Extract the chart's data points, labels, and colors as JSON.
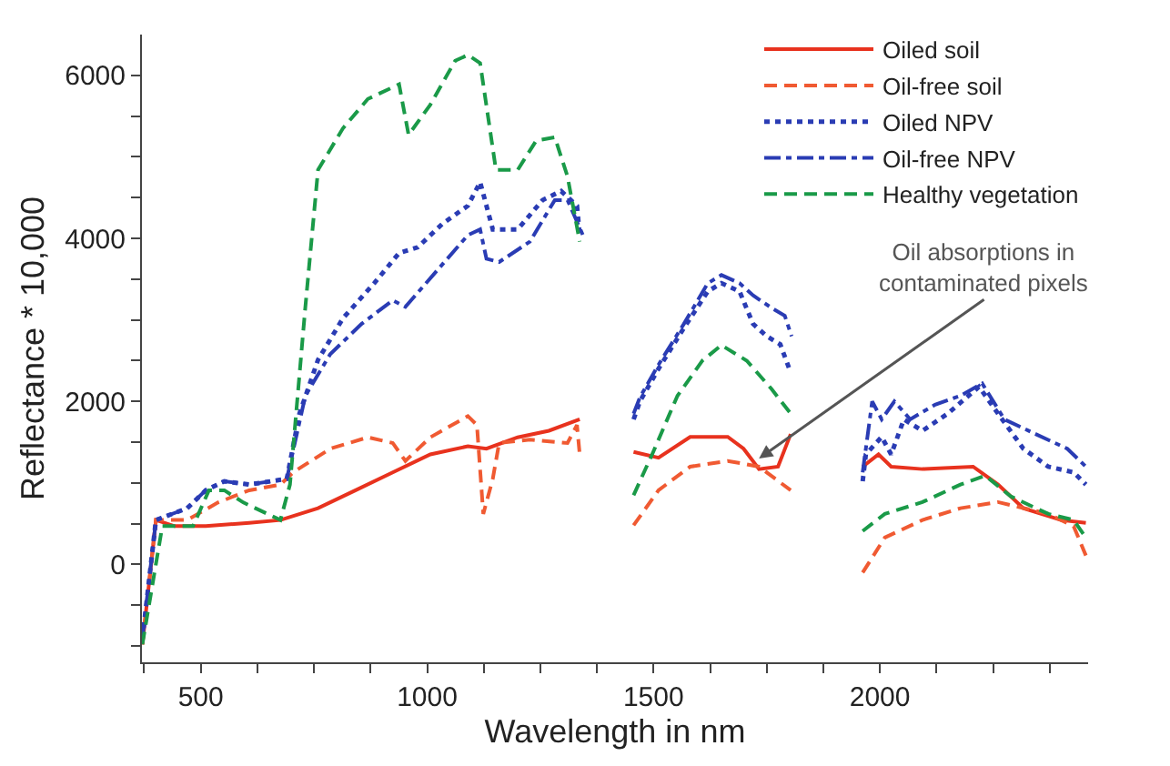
{
  "chart_data": {
    "type": "line",
    "xlabel": "Wavelength in nm",
    "ylabel": "Reflectance * 10,000",
    "xlim": [
      370,
      2460
    ],
    "ylim": [
      -1200,
      6500
    ],
    "xticks": [
      {
        "value": 375,
        "label": null
      },
      500,
      {
        "value": 625,
        "label": null
      },
      {
        "value": 750,
        "label": null
      },
      {
        "value": 875,
        "label": null
      },
      1000,
      {
        "value": 1125,
        "label": null
      },
      {
        "value": 1250,
        "label": null
      },
      {
        "value": 1375,
        "label": null
      },
      1500,
      {
        "value": 1625,
        "label": null
      },
      {
        "value": 1750,
        "label": null
      },
      {
        "value": 1875,
        "label": null
      },
      2000,
      {
        "value": 2125,
        "label": null
      },
      {
        "value": 2250,
        "label": null
      },
      {
        "value": 2375,
        "label": null
      }
    ],
    "yticks": [
      {
        "value": -1000,
        "label": null
      },
      {
        "value": -500,
        "label": null
      },
      0,
      {
        "value": 500,
        "label": null
      },
      {
        "value": 1000,
        "label": null
      },
      {
        "value": 1500,
        "label": null
      },
      2000,
      {
        "value": 2500,
        "label": null
      },
      {
        "value": 3000,
        "label": null
      },
      {
        "value": 3500,
        "label": null
      },
      4000,
      {
        "value": 4500,
        "label": null
      },
      {
        "value": 5000,
        "label": null
      },
      {
        "value": 5500,
        "label": null
      },
      6000
    ],
    "grid": false,
    "legend": "top right",
    "marker": "none",
    "annotations": [
      {
        "text": "Oil absorptions in contaminated pixels",
        "x": 1733,
        "y": 1300
      }
    ],
    "series": [
      {
        "name": "Oiled soil",
        "color": "#e8321e",
        "line_style": "solid",
        "x": [
          371,
          401,
          442,
          511,
          607,
          676,
          759,
          842,
          924,
          1007,
          1090,
          1131,
          1200,
          1269,
          1337,
          1400,
          1456,
          1511,
          1581,
          1664,
          1699,
          1733,
          1775,
          1803,
          1900,
          1962,
          1997,
          2025,
          2094,
          2206,
          2261,
          2317,
          2400,
          2455
        ],
        "values": [
          -980,
          545,
          470,
          470,
          510,
          545,
          690,
          910,
          1130,
          1350,
          1450,
          1420,
          1560,
          1640,
          1780,
          null,
          1380,
          1310,
          1565,
          1565,
          1420,
          1170,
          1200,
          1600,
          null,
          1200,
          1350,
          1200,
          1170,
          1200,
          980,
          690,
          545,
          510
        ]
      },
      {
        "name": "Oil-free soil",
        "color": "#f05a32",
        "line_style": "dashed",
        "x": [
          371,
          401,
          470,
          538,
          607,
          676,
          704,
          786,
          869,
          924,
          952,
          1007,
          1090,
          1110,
          1124,
          1145,
          1159,
          1227,
          1310,
          1331,
          1337,
          1400,
          1456,
          1511,
          1581,
          1664,
          1733,
          1803,
          1900,
          1962,
          2011,
          2094,
          2178,
          2261,
          2372,
          2428,
          2455
        ],
        "values": [
          -980,
          545,
          545,
          760,
          910,
          980,
          1130,
          1420,
          1560,
          1490,
          1270,
          1560,
          1820,
          1710,
          620,
          1050,
          1490,
          1530,
          1490,
          1710,
          1350,
          null,
          480,
          910,
          1200,
          1270,
          1200,
          910,
          null,
          -100,
          330,
          545,
          690,
          765,
          620,
          470,
          110
        ]
      },
      {
        "name": "Oiled NPV",
        "color": "#2a3cb4",
        "line_style": "dotted",
        "x": [
          371,
          401,
          470,
          511,
          552,
          607,
          690,
          718,
          759,
          814,
          883,
          938,
          979,
          1034,
          1090,
          1117,
          1145,
          1200,
          1255,
          1296,
          1331,
          1337,
          1400,
          1456,
          1470,
          1511,
          1567,
          1620,
          1650,
          1690,
          1720,
          1750,
          1780,
          1800,
          1900,
          1962,
          1969,
          2004,
          2025,
          2053,
          2094,
          2150,
          2219,
          2261,
          2317,
          2372,
          2428,
          2455
        ],
        "values": [
          -910,
          545,
          690,
          910,
          1020,
          980,
          1050,
          1850,
          2510,
          3020,
          3450,
          3820,
          3890,
          4180,
          4400,
          4690,
          4110,
          4110,
          4470,
          4580,
          4400,
          4040,
          null,
          1780,
          2000,
          2400,
          2900,
          3350,
          3450,
          3350,
          2950,
          2800,
          2700,
          2400,
          null,
          1020,
          1350,
          1565,
          1350,
          1780,
          1640,
          1850,
          2180,
          1850,
          1420,
          1200,
          1130,
          980
        ]
      },
      {
        "name": "Oil-free NPV",
        "color": "#2a3cb4",
        "line_style": "dashdot",
        "x": [
          371,
          401,
          470,
          511,
          552,
          607,
          690,
          731,
          786,
          855,
          924,
          952,
          1021,
          1090,
          1117,
          1131,
          1159,
          1227,
          1282,
          1310,
          1344,
          1400,
          1456,
          1470,
          1511,
          1567,
          1620,
          1650,
          1690,
          1720,
          1760,
          1790,
          1805,
          1900,
          1962,
          1983,
          2004,
          2032,
          2067,
          2122,
          2178,
          2226,
          2275,
          2344,
          2414,
          2455
        ],
        "values": [
          -910,
          545,
          690,
          910,
          1020,
          980,
          1050,
          2070,
          2580,
          2950,
          3240,
          3160,
          3600,
          4040,
          4110,
          3750,
          3710,
          3960,
          4470,
          4470,
          4040,
          null,
          1850,
          2050,
          2450,
          2950,
          3450,
          3550,
          3450,
          3300,
          3150,
          3050,
          2800,
          null,
          1130,
          2000,
          1780,
          2000,
          1780,
          1960,
          2070,
          2220,
          1780,
          1600,
          1420,
          1200
        ]
      },
      {
        "name": "Healthy vegetation",
        "color": "#1a9a48",
        "line_style": "dashed",
        "x": [
          371,
          415,
          483,
          518,
          552,
          594,
          676,
          697,
          731,
          759,
          814,
          869,
          938,
          959,
          1007,
          1062,
          1090,
          1117,
          1152,
          1200,
          1241,
          1282,
          1310,
          1337,
          1400,
          1456,
          1497,
          1553,
          1608,
          1650,
          1706,
          1761,
          1803,
          1900,
          1962,
          2011,
          2094,
          2178,
          2233,
          2289,
          2372,
          2428,
          2455
        ],
        "values": [
          -980,
          470,
          470,
          910,
          910,
          760,
          545,
          980,
          3160,
          4840,
          5350,
          5710,
          5890,
          5270,
          5640,
          6180,
          6250,
          6150,
          4840,
          4840,
          5200,
          5240,
          4760,
          3960,
          null,
          850,
          1350,
          2070,
          2500,
          2690,
          2500,
          2150,
          1850,
          null,
          410,
          620,
          765,
          980,
          1090,
          835,
          620,
          545,
          330
        ]
      }
    ]
  }
}
